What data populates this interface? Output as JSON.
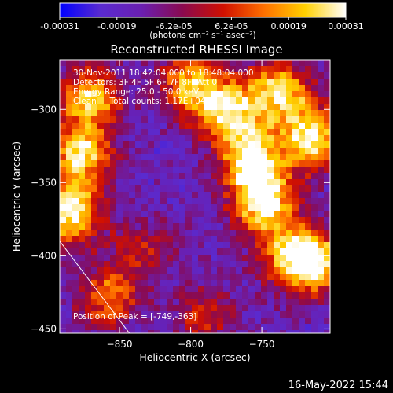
{
  "chart_data": {
    "type": "heatmap",
    "title": "Reconstructed RHESSI Image",
    "xlabel": "Heliocentric X (arcsec)",
    "ylabel": "Heliocentric Y (arcsec)",
    "xlim": [
      -892,
      -702
    ],
    "ylim": [
      -453,
      -266
    ],
    "xticks": [
      -850,
      -800,
      -750
    ],
    "yticks": [
      -300,
      -350,
      -400,
      -450
    ],
    "colorbar": {
      "range": [
        -0.00031,
        0.00031
      ],
      "ticks": [
        "-0.00031",
        "-0.00019",
        "-6.2e-05",
        "6.2e-05",
        "0.00019",
        "0.00031"
      ],
      "unit_label": "(photons cm⁻² s⁻¹ asec⁻²)",
      "colors": [
        "#0000ff",
        "#5a2bd0",
        "#6a1fb0",
        "#8a0a50",
        "#d01000",
        "#ff7000",
        "#ffd000",
        "#ffffff"
      ]
    },
    "annotations": [
      "30-Nov-2011 18:42:04.000 to 18:48:04.000",
      "Detectors: 3F 4F 5F 6F 7F 8F, Att 0",
      "Energy Range: 25.0 - 50.0 keV",
      "Clean     Total counts: 1.17E+04"
    ],
    "peak_label": "Position of Peak = [-749,-363]",
    "peak": [
      -749,
      -363
    ],
    "bright_regions": [
      {
        "x": -885,
        "y": -370,
        "intensity": 1.0
      },
      {
        "x": -877,
        "y": -330,
        "intensity": 0.85
      },
      {
        "x": -870,
        "y": -292,
        "intensity": 0.8
      },
      {
        "x": -858,
        "y": -428,
        "intensity": 0.6
      },
      {
        "x": -800,
        "y": -283,
        "intensity": 0.75
      },
      {
        "x": -773,
        "y": -300,
        "intensity": 0.85
      },
      {
        "x": -758,
        "y": -333,
        "intensity": 0.95
      },
      {
        "x": -749,
        "y": -363,
        "intensity": 1.0
      },
      {
        "x": -737,
        "y": -288,
        "intensity": 0.85
      },
      {
        "x": -715,
        "y": -320,
        "intensity": 0.9
      },
      {
        "x": -712,
        "y": -405,
        "intensity": 0.8
      },
      {
        "x": -730,
        "y": -400,
        "intensity": 0.7
      },
      {
        "x": -835,
        "y": -395,
        "intensity": 0.35
      },
      {
        "x": -790,
        "y": -440,
        "intensity": 0.4
      }
    ],
    "limb_line": [
      [
        -892,
        -390
      ],
      [
        -843,
        -453
      ]
    ]
  },
  "timestamp": "16-May-2022 15:44"
}
